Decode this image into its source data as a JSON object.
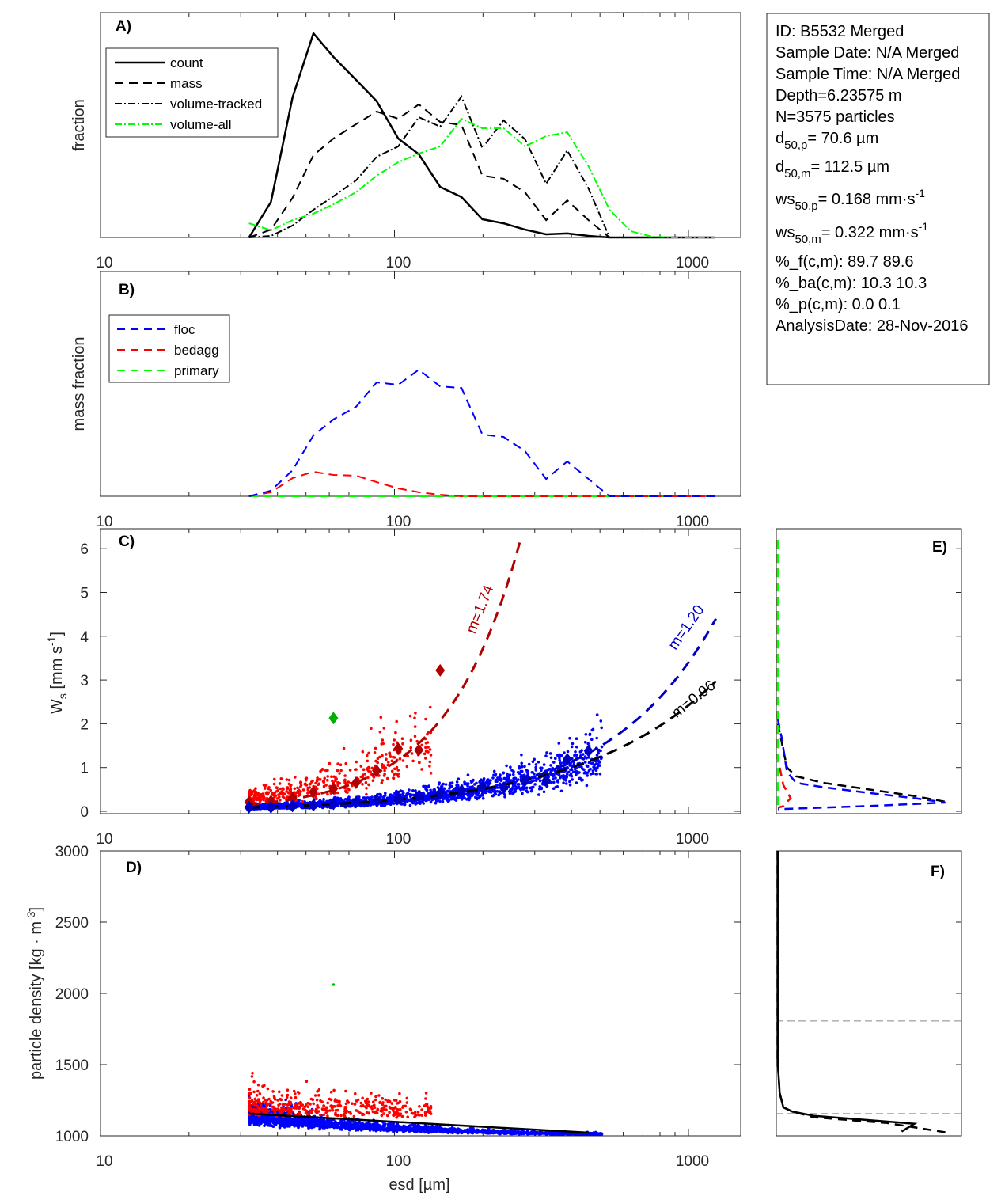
{
  "info_box": {
    "lines": [
      {
        "main": "ID: B5532 Merged"
      },
      {
        "main": "Sample Date: N/A Merged"
      },
      {
        "main": "Sample Time: N/A Merged"
      },
      {
        "main": "Depth=6.23575 m"
      },
      {
        "main": "N=3575 particles"
      },
      {
        "main": "d",
        "sub": "50,p",
        "rest": "=  70.6 µm"
      },
      {
        "main": "d",
        "sub": "50,m",
        "rest": "= 112.5 µm"
      },
      {
        "main": "ws",
        "sub": "50,p",
        "rest": "= 0.168 mm·s",
        "sup": "-1"
      },
      {
        "main": "ws",
        "sub": "50,m",
        "rest": "= 0.322 mm·s",
        "sup": "-1"
      },
      {
        "main": "%_f(c,m): 89.7 89.6"
      },
      {
        "main": "%_ba(c,m): 10.3 10.3"
      },
      {
        "main": "%_p(c,m): 0.0 0.1"
      },
      {
        "main": "AnalysisDate: 28-Nov-2016"
      }
    ]
  },
  "chart_data": [
    {
      "panel": "A)",
      "type": "line",
      "xscale": "log",
      "xlim": [
        10,
        1500
      ],
      "ylim": [
        0,
        1
      ],
      "xticks": [
        "10",
        "100",
        "1000"
      ],
      "ylabel": "fraction",
      "legend": "top-left",
      "x": [
        32,
        38,
        45,
        53,
        62,
        74,
        87,
        103,
        121,
        143,
        169,
        199,
        235,
        278,
        328,
        387,
        457,
        539,
        636,
        751,
        886,
        1046,
        1234
      ],
      "series": [
        {
          "name": "count",
          "style": "solid",
          "color": "#000000",
          "values": [
            0,
            0.158,
            0.623,
            0.908,
            0.803,
            0.701,
            0.606,
            0.44,
            0.37,
            0.225,
            0.18,
            0.081,
            0.063,
            0.035,
            0.014,
            0.018,
            0.007,
            0,
            0,
            0,
            0,
            0,
            0
          ]
        },
        {
          "name": "mass",
          "style": "dashed",
          "color": "#000000",
          "values": [
            0,
            0.035,
            0.176,
            0.366,
            0.44,
            0.504,
            0.56,
            0.528,
            0.592,
            0.514,
            0.5,
            0.275,
            0.261,
            0.201,
            0.077,
            0.165,
            0.077,
            0,
            0,
            0,
            0,
            0,
            0
          ]
        },
        {
          "name": "volume-tracked",
          "style": "dashdot",
          "color": "#000000",
          "values": [
            0,
            0.007,
            0.053,
            0.123,
            0.183,
            0.254,
            0.359,
            0.405,
            0.535,
            0.493,
            0.627,
            0.398,
            0.521,
            0.437,
            0.239,
            0.387,
            0.218,
            0,
            0,
            0,
            0,
            0,
            0
          ]
        },
        {
          "name": "volume-all",
          "style": "dashdot",
          "color": "#00ff00",
          "values": [
            0.063,
            0.032,
            0.077,
            0.106,
            0.148,
            0.201,
            0.275,
            0.335,
            0.373,
            0.405,
            0.528,
            0.486,
            0.486,
            0.405,
            0.451,
            0.468,
            0.317,
            0.123,
            0.028,
            0.004,
            0,
            0,
            0
          ]
        }
      ]
    },
    {
      "panel": "B)",
      "type": "line",
      "xscale": "log",
      "xlim": [
        10,
        1500
      ],
      "ylim": [
        0,
        1
      ],
      "xticks": [
        "10",
        "100",
        "1000"
      ],
      "ylabel": "mass fraction",
      "legend": "top-left",
      "x": [
        32,
        38,
        45,
        53,
        62,
        74,
        87,
        103,
        121,
        143,
        169,
        199,
        235,
        278,
        328,
        387,
        457,
        539,
        636,
        751,
        886,
        1046,
        1234
      ],
      "series": [
        {
          "name": "floc",
          "style": "dashed",
          "color": "#0000ff",
          "values": [
            0,
            0.025,
            0.116,
            0.271,
            0.342,
            0.398,
            0.507,
            0.496,
            0.563,
            0.489,
            0.482,
            0.275,
            0.264,
            0.201,
            0.077,
            0.155,
            0.077,
            0,
            0,
            0,
            0,
            0,
            0
          ]
        },
        {
          "name": "bedagg",
          "style": "dashed",
          "color": "#ff0000",
          "values": [
            0,
            0.018,
            0.081,
            0.109,
            0.095,
            0.092,
            0.063,
            0.035,
            0.018,
            0.007,
            0,
            0,
            0,
            0,
            0,
            0,
            0,
            0,
            0,
            0,
            0,
            0,
            0
          ]
        },
        {
          "name": "primary",
          "style": "dashed",
          "color": "#00ff00",
          "values": [
            0,
            0,
            0,
            0,
            0,
            0,
            0,
            0,
            0,
            0,
            0,
            0,
            0,
            0,
            0,
            0,
            0,
            0,
            0,
            0,
            0,
            0,
            0
          ]
        }
      ]
    },
    {
      "panel": "C)",
      "type": "scatter",
      "xscale": "log",
      "xlim": [
        10,
        1500
      ],
      "ylim": [
        0,
        6.2
      ],
      "xticks": [
        "10",
        "100",
        "1000"
      ],
      "yticks": [
        "0",
        "1",
        "2",
        "3",
        "4",
        "5",
        "6"
      ],
      "ylabel": "W",
      "ylabel_sub": "s",
      "ylabel_unit": " [mm s",
      "ylabel_sup": "-1",
      "ylabel_end": "]",
      "scatter_groups": [
        {
          "group": "floc",
          "color": "#0000ff",
          "x_range": [
            32,
            500
          ],
          "y_range": [
            0,
            2.1
          ]
        },
        {
          "group": "bedagg",
          "color": "#ff0000",
          "x_range": [
            32,
            150
          ],
          "y_range": [
            0.1,
            4
          ]
        }
      ],
      "bin_means": [
        {
          "group": "bedagg",
          "color": "#b00000",
          "x": [
            32,
            38,
            45,
            53,
            62,
            74,
            87,
            103,
            121,
            143
          ],
          "y": [
            0.21,
            0.23,
            0.31,
            0.44,
            0.52,
            0.65,
            0.93,
            1.43,
            1.4,
            3.22
          ]
        },
        {
          "group": "floc",
          "color": "#0000c0",
          "x": [
            32,
            38,
            45,
            53,
            62,
            74,
            87,
            103,
            121,
            143,
            169,
            199,
            235,
            278,
            328,
            387,
            457
          ],
          "y": [
            0.09,
            0.09,
            0.12,
            0.14,
            0.17,
            0.21,
            0.26,
            0.3,
            0.35,
            0.42,
            0.47,
            0.56,
            0.54,
            0.7,
            0.7,
            1.19,
            1.38
          ]
        },
        {
          "group": "primary",
          "color": "#00b000",
          "x": [
            62
          ],
          "y": [
            2.13
          ]
        }
      ],
      "fits": [
        {
          "label": "m=1.74",
          "m": 1.74,
          "a": 0.000369,
          "x_range": [
            32,
            268
          ],
          "color": "#b00000"
        },
        {
          "label": "m=1.20",
          "m": 1.2,
          "a": 0.000854,
          "x_range": [
            32,
            1240
          ],
          "color": "#0000c0"
        },
        {
          "label": "m=0.96",
          "m": 0.96,
          "a": 0.00319,
          "x_range": [
            32,
            1240
          ],
          "color": "#000000"
        }
      ]
    },
    {
      "panel": "D)",
      "type": "scatter",
      "xscale": "log",
      "xlim": [
        10,
        1500
      ],
      "ylim": [
        1000,
        3000
      ],
      "xticks": [
        "10",
        "100",
        "1000"
      ],
      "yticks": [
        "1000",
        "1500",
        "2000",
        "2500",
        "3000"
      ],
      "xlabel": "esd [µm]",
      "ylabel": "particle density [kg · m",
      "ylabel_sup": "-3",
      "ylabel_end": "]",
      "scatter_groups": [
        {
          "group": "floc",
          "color": "#0000ff",
          "x_range": [
            32,
            500
          ],
          "y_range": [
            1000,
            1200
          ]
        },
        {
          "group": "bedagg",
          "color": "#ff0000",
          "x_range": [
            32,
            150
          ],
          "y_range": [
            1080,
            1680
          ]
        },
        {
          "group": "primary",
          "color": "#00c000",
          "x": [
            62
          ],
          "y": [
            2061
          ]
        }
      ],
      "fit_line": {
        "x": [
          32,
          460
        ],
        "y": [
          1156,
          1022
        ],
        "color": "#000000"
      }
    },
    {
      "panel": "E)",
      "type": "line",
      "ylim": [
        0,
        6.2
      ],
      "xlim": [
        0,
        1
      ],
      "series": [
        {
          "group": "all",
          "style": "dashed",
          "color": "#000000",
          "x": [
            0.0,
            0.02,
            0.05,
            0.1,
            0.25,
            0.5,
            0.75,
            0.92
          ],
          "y": [
            2.0,
            1.6,
            1.0,
            0.8,
            0.65,
            0.5,
            0.35,
            0.22
          ]
        },
        {
          "group": "floc",
          "style": "dashed",
          "color": "#0000ff",
          "x": [
            0.0,
            0.02,
            0.05,
            0.1,
            0.25,
            0.5,
            0.75,
            0.92,
            0.5,
            0.0
          ],
          "y": [
            2.1,
            1.7,
            0.9,
            0.65,
            0.55,
            0.42,
            0.3,
            0.2,
            0.12,
            0.05
          ]
        },
        {
          "group": "bedagg",
          "style": "dashed",
          "color": "#ff0000",
          "x": [
            0.0,
            0.0,
            0.0,
            0.03,
            0.07,
            0.03,
            0.0
          ],
          "y": [
            6.2,
            2.0,
            1.2,
            0.6,
            0.3,
            0.12,
            0.08
          ]
        },
        {
          "group": "primary",
          "style": "dashed",
          "color": "#00ff00",
          "x": [
            0.0,
            0.0
          ],
          "y": [
            6.2,
            0.0
          ]
        }
      ]
    },
    {
      "panel": "F)",
      "type": "line",
      "ylim": [
        1000,
        3000
      ],
      "xlim": [
        0,
        1
      ],
      "reference_lines": [
        1806,
        1156
      ],
      "series": [
        {
          "style": "solid",
          "color": "#000000",
          "x": [
            0.0,
            0.0,
            0.01,
            0.03,
            0.08,
            0.2,
            0.75,
            0.68
          ],
          "y": [
            3000,
            1500,
            1300,
            1200,
            1170,
            1140,
            1085,
            1030
          ]
        },
        {
          "style": "dashed",
          "color": "#000000",
          "x": [
            0.0,
            0.0,
            0.01,
            0.03,
            0.08,
            0.2,
            0.6,
            0.92
          ],
          "y": [
            3000,
            1500,
            1300,
            1200,
            1170,
            1130,
            1090,
            1025
          ]
        }
      ]
    }
  ]
}
